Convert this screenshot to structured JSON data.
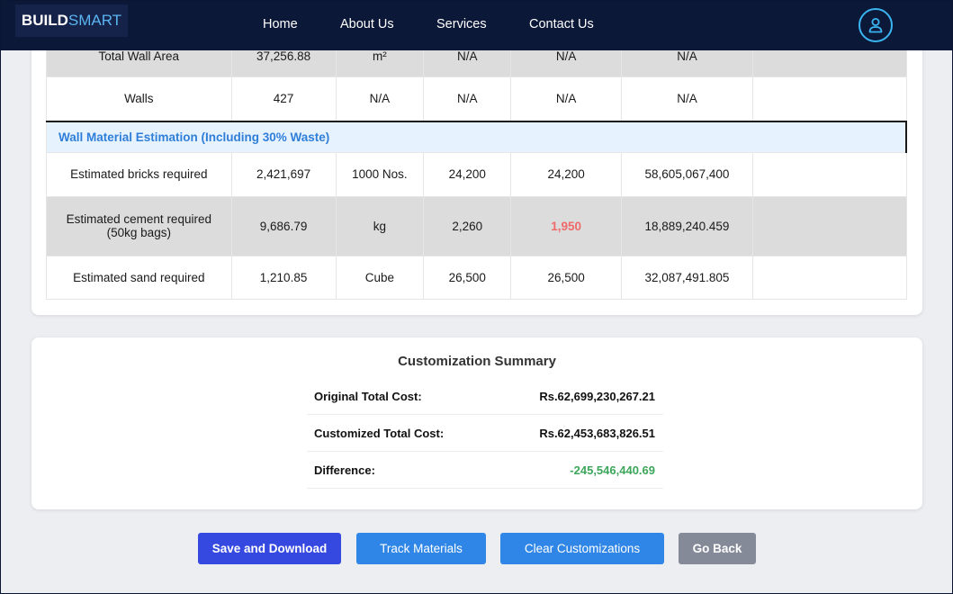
{
  "brand": {
    "part1": "BUILD",
    "part2": "SMART"
  },
  "nav": {
    "items": [
      {
        "label": "Home"
      },
      {
        "label": "About Us"
      },
      {
        "label": "Services"
      },
      {
        "label": "Contact Us"
      }
    ],
    "profile_icon": "user-icon",
    "accent": "#3ab4f2"
  },
  "table": {
    "rows": [
      {
        "cells": [
          "Total Wall Area",
          "37,256.88",
          "m²",
          "N/A",
          "N/A",
          "N/A",
          ""
        ]
      },
      {
        "cells": [
          "Walls",
          "427",
          "N/A",
          "N/A",
          "N/A",
          "N/A",
          ""
        ]
      }
    ],
    "section_title": "Wall Material Estimation (Including 30% Waste)",
    "section_rows": [
      {
        "cells": [
          "Estimated bricks required",
          "2,421,697",
          "1000 Nos.",
          "24,200",
          "24,200",
          "58,605,067,400",
          ""
        ]
      },
      {
        "cells": [
          "Estimated cement required (50kg bags)",
          "9,686.79",
          "kg",
          "2,260",
          "1,950",
          "18,889,240.459",
          ""
        ]
      },
      {
        "cells": [
          "Estimated sand required",
          "1,210.85",
          "Cube",
          "26,500",
          "26,500",
          "32,087,491.805",
          ""
        ]
      }
    ],
    "highlight_color": "#f06a6a"
  },
  "summary": {
    "title": "Customization Summary",
    "rows": [
      {
        "label": "Original Total Cost:",
        "value": "Rs.62,699,230,267.21"
      },
      {
        "label": "Customized Total Cost:",
        "value": "Rs.62,453,683,826.51"
      },
      {
        "label": "Difference:",
        "value": "-245,546,440.69"
      }
    ],
    "difference_color": "#3ca65a"
  },
  "actions": {
    "save": "Save and Download",
    "track": "Track Materials",
    "clear": "Clear Customizations",
    "back": "Go Back"
  }
}
